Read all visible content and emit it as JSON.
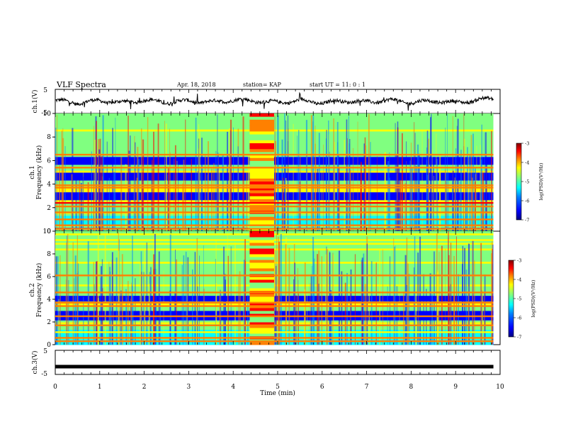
{
  "header": {
    "title": "VLF Spectra",
    "date": "Apr. 18, 2018",
    "station": "station= KAP",
    "start": "start UT = 11: 0 : 1"
  },
  "colors": {
    "spectrogram_colormap": [
      "#00007f",
      "#0000ff",
      "#0080ff",
      "#00ffff",
      "#80ff80",
      "#ffff00",
      "#ff8000",
      "#ff0000",
      "#800000"
    ],
    "waveform": "#000000"
  },
  "chart_data": [
    {
      "type": "line",
      "panel": "ch1-waveform",
      "ylabel": "ch.1(V)",
      "ylim": [
        -5,
        5
      ],
      "yticks": [
        "5",
        "-5"
      ],
      "xlim": [
        0,
        10
      ],
      "series": [
        {
          "description_level": "noisy waveform, mean ≈ 0 V, amplitude ≈ ±2 V"
        }
      ],
      "x": [
        0,
        0.5,
        1,
        1.5,
        2,
        2.5,
        3,
        3.5,
        4,
        4.5,
        5,
        5.5,
        6,
        6.5,
        7,
        7.5,
        8,
        8.5,
        9,
        9.5,
        9.85
      ],
      "y": [
        0.4,
        -0.6,
        0.3,
        -0.5,
        0.5,
        -0.4,
        0.2,
        -0.3,
        0.6,
        0.2,
        -0.5,
        0.4,
        -0.6,
        0.3,
        -0.3,
        0.5,
        -0.4,
        0.2,
        -0.5,
        0.6,
        1.2
      ]
    },
    {
      "type": "heatmap",
      "panel": "ch1-spectrogram",
      "ylabel": "ch.1",
      "ylabel2": "Frequency (kHz)",
      "ylim": [
        0,
        10
      ],
      "yticks": [
        "0",
        "2",
        "4",
        "6",
        "8",
        "10"
      ],
      "xlim": [
        0,
        9.85
      ],
      "colorbar": {
        "label": "log(PSD)(V²/Hz)",
        "range": [
          -7,
          -3
        ],
        "ticks": [
          "-3",
          "-4",
          "-5",
          "-6",
          "-7"
        ]
      },
      "strong_bands_khz": [
        0.2,
        0.5,
        1.0,
        1.6,
        2.1,
        2.4,
        3.7,
        3.9,
        5.4,
        6.5
      ],
      "quiet_bands_khz": [
        [
          2.8,
          3.3
        ],
        [
          4.4,
          5.0
        ],
        [
          5.7,
          6.2
        ]
      ],
      "broadband_interval_min": [
        4.37,
        4.92
      ]
    },
    {
      "type": "heatmap",
      "panel": "ch2-spectrogram",
      "ylabel": "ch.2",
      "ylabel2": "Frequency (kHz)",
      "ylim": [
        0,
        10
      ],
      "yticks": [
        "0",
        "2",
        "4",
        "6",
        "8",
        "10"
      ],
      "xlim": [
        0,
        9.85
      ],
      "colorbar": {
        "label": "log(PSD)(V²/Hz)",
        "range": [
          -7,
          -3
        ],
        "ticks": [
          "-3",
          "-4",
          "-5",
          "-6",
          "-7"
        ]
      },
      "strong_bands_khz": [
        0.3,
        0.6,
        1.1,
        1.7,
        2.5,
        3.4,
        3.7,
        4.6,
        6.1
      ],
      "quiet_bands_khz": [
        [
          2.2,
          3.0
        ],
        [
          3.9,
          4.3
        ]
      ],
      "broadband_interval_min": [
        4.37,
        4.92
      ]
    },
    {
      "type": "line",
      "panel": "ch3-waveform",
      "ylabel": "ch.3(V)",
      "ylim": [
        -5,
        5
      ],
      "yticks": [
        "5",
        "-5"
      ],
      "xlim": [
        0,
        10
      ],
      "x": [
        0,
        9.85
      ],
      "y": [
        0,
        0
      ]
    }
  ],
  "xaxis": {
    "label": "Time (min)",
    "ticks": [
      "0",
      "1",
      "2",
      "3",
      "4",
      "5",
      "6",
      "7",
      "8",
      "9",
      "10"
    ]
  }
}
